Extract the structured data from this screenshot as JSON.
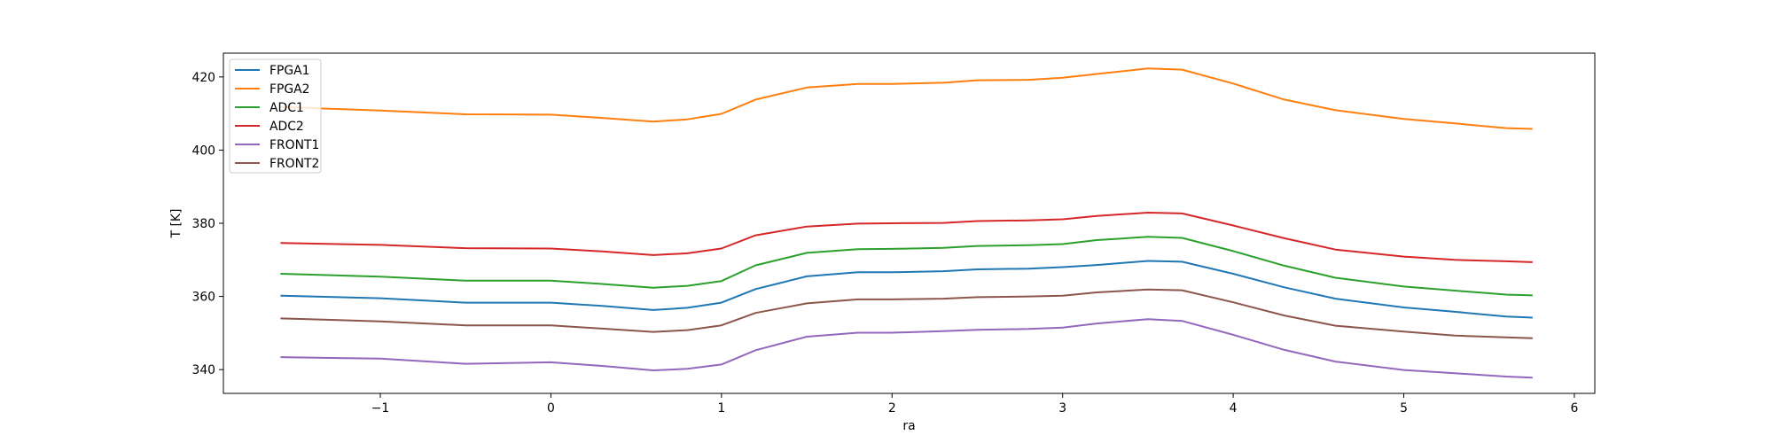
{
  "chart_data": {
    "type": "line",
    "xlabel": "ra",
    "ylabel": "T [K]",
    "xlim": [
      -1.92,
      6.12
    ],
    "ylim": [
      333.5,
      426.5
    ],
    "xticks": [
      -1,
      0,
      1,
      2,
      3,
      4,
      5,
      6
    ],
    "yticks": [
      340,
      360,
      380,
      400,
      420
    ],
    "xtick_labels": [
      "−1",
      "0",
      "1",
      "2",
      "3",
      "4",
      "5",
      "6"
    ],
    "ytick_labels": [
      "340",
      "360",
      "380",
      "400",
      "420"
    ],
    "grid": false,
    "legend_position": "top-left",
    "x": [
      -1.58,
      -1.0,
      -0.5,
      0.0,
      0.3,
      0.6,
      0.8,
      1.0,
      1.2,
      1.5,
      1.8,
      2.0,
      2.3,
      2.5,
      2.8,
      3.0,
      3.2,
      3.5,
      3.7,
      4.0,
      4.3,
      4.6,
      5.0,
      5.3,
      5.6,
      5.75
    ],
    "series": [
      {
        "name": "FPGA1",
        "color": "#1f77b4",
        "values": [
          360.2,
          359.5,
          358.3,
          358.3,
          357.4,
          356.3,
          356.9,
          358.3,
          362.0,
          365.5,
          366.6,
          366.6,
          366.9,
          367.4,
          367.6,
          368.0,
          368.6,
          369.7,
          369.5,
          366.2,
          362.5,
          359.4,
          357.0,
          355.8,
          354.5,
          354.2
        ]
      },
      {
        "name": "FPGA2",
        "color": "#ff7f0e",
        "values": [
          411.8,
          410.8,
          409.8,
          409.7,
          408.8,
          407.8,
          408.4,
          409.9,
          413.8,
          417.1,
          418.1,
          418.1,
          418.4,
          419.1,
          419.2,
          419.8,
          420.8,
          422.3,
          422.0,
          418.2,
          413.8,
          410.9,
          408.5,
          407.3,
          406.0,
          405.8
        ]
      },
      {
        "name": "ADC1",
        "color": "#2ca02c",
        "values": [
          366.2,
          365.4,
          364.3,
          364.3,
          363.4,
          362.4,
          362.9,
          364.2,
          368.5,
          371.9,
          372.9,
          373.0,
          373.3,
          373.8,
          374.0,
          374.3,
          375.4,
          376.3,
          376.0,
          372.4,
          368.4,
          365.1,
          362.7,
          361.6,
          360.5,
          360.3
        ]
      },
      {
        "name": "ADC2",
        "color": "#d62728",
        "values": [
          374.6,
          374.1,
          373.2,
          373.1,
          372.3,
          371.3,
          371.8,
          373.1,
          376.7,
          379.1,
          379.9,
          380.0,
          380.1,
          380.6,
          380.8,
          381.1,
          382.0,
          382.9,
          382.7,
          379.4,
          375.9,
          372.8,
          370.9,
          370.0,
          369.6,
          369.4
        ]
      },
      {
        "name": "FRONT1",
        "color": "#9467bd",
        "values": [
          343.4,
          343.0,
          341.6,
          342.0,
          341.0,
          339.8,
          340.2,
          341.4,
          345.3,
          349.0,
          350.1,
          350.1,
          350.5,
          350.9,
          351.1,
          351.5,
          352.6,
          353.8,
          353.3,
          349.5,
          345.4,
          342.2,
          339.9,
          339.0,
          338.1,
          337.8
        ]
      },
      {
        "name": "FRONT2",
        "color": "#8c564b",
        "values": [
          354.0,
          353.2,
          352.1,
          352.1,
          351.2,
          350.3,
          350.8,
          352.1,
          355.5,
          358.1,
          359.2,
          359.2,
          359.4,
          359.8,
          360.0,
          360.2,
          361.1,
          361.9,
          361.7,
          358.4,
          354.8,
          352.0,
          350.4,
          349.3,
          348.8,
          348.6
        ]
      }
    ]
  }
}
